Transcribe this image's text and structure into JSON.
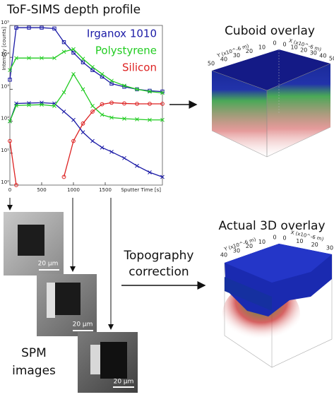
{
  "header": {
    "title": "ToF-SIMS depth profile"
  },
  "chart_data": {
    "type": "line",
    "log_y": true,
    "xlabel": "Sputter Time [s]",
    "ylabel": "Intensity [counts]",
    "x": [
      0,
      100,
      300,
      500,
      700,
      850,
      1000,
      1150,
      1300,
      1450,
      1600,
      1800,
      2000,
      2200,
      2400
    ],
    "xlim": [
      0,
      2400
    ],
    "xticks": [
      0,
      500,
      1000,
      1500
    ],
    "ylim": [
      1,
      100000
    ],
    "yticks": [
      {
        "value": 1,
        "label": "10⁰"
      },
      {
        "value": 10,
        "label": "10¹"
      },
      {
        "value": 100,
        "label": "10²"
      },
      {
        "value": 1000,
        "label": "10³"
      },
      {
        "value": 10000,
        "label": "10⁴"
      },
      {
        "value": 100000,
        "label": "10⁵"
      }
    ],
    "series": [
      {
        "name": "Irganox 1010",
        "color": "#1a1aa6",
        "marker": "square",
        "values": [
          2000,
          85000,
          85000,
          85000,
          80000,
          30000,
          14000,
          7000,
          4000,
          2500,
          1500,
          1200,
          1000,
          900,
          850
        ]
      },
      {
        "name": "Polystyrene",
        "color": "#22cc22",
        "marker": "cross",
        "values": [
          4000,
          9500,
          9500,
          9500,
          9500,
          15000,
          18000,
          9000,
          5000,
          3000,
          1850,
          1300,
          1000,
          850,
          770
        ]
      },
      {
        "name": "Silicon",
        "color": "#dd2222",
        "marker": "circle",
        "values": [
          24,
          1,
          null,
          null,
          null,
          1.8,
          24,
          85,
          200,
          340,
          380,
          360,
          350,
          350,
          350
        ]
      },
      {
        "name": "Irganox 1010",
        "color": "#1a1aa6",
        "marker": "cross",
        "values": [
          100,
          360,
          370,
          380,
          360,
          200,
          110,
          45,
          24,
          15,
          11,
          7,
          4,
          2.5,
          1.8
        ]
      },
      {
        "name": "Polystyrene",
        "color": "#22cc22",
        "marker": "cross",
        "values": [
          100,
          310,
          320,
          330,
          300,
          800,
          3000,
          1000,
          300,
          160,
          130,
          120,
          115,
          110,
          110
        ]
      }
    ]
  },
  "cuboid": {
    "title": "Cuboid overlay",
    "y_axis_label": "Y (x10^-6 m)",
    "x_axis_label": "X (x10^-6 m)",
    "y_ticks": [
      50,
      40,
      30,
      20,
      10,
      0
    ],
    "x_ticks": [
      0,
      10,
      20,
      30,
      40,
      50
    ]
  },
  "actual": {
    "title": "Actual 3D overlay",
    "y_axis_label": "Y (x10^-6 m)",
    "x_axis_label": "X (x10^-6 m)",
    "y_ticks": [
      40,
      30,
      20,
      10,
      0
    ],
    "x_ticks": [
      0,
      10,
      20,
      30
    ]
  },
  "correction": {
    "lines": [
      "Topography",
      "correction"
    ]
  },
  "spm": {
    "label_lines": [
      "SPM",
      "images"
    ],
    "scale_bars": [
      "20 μm",
      "20 μm",
      "20 μm"
    ]
  }
}
